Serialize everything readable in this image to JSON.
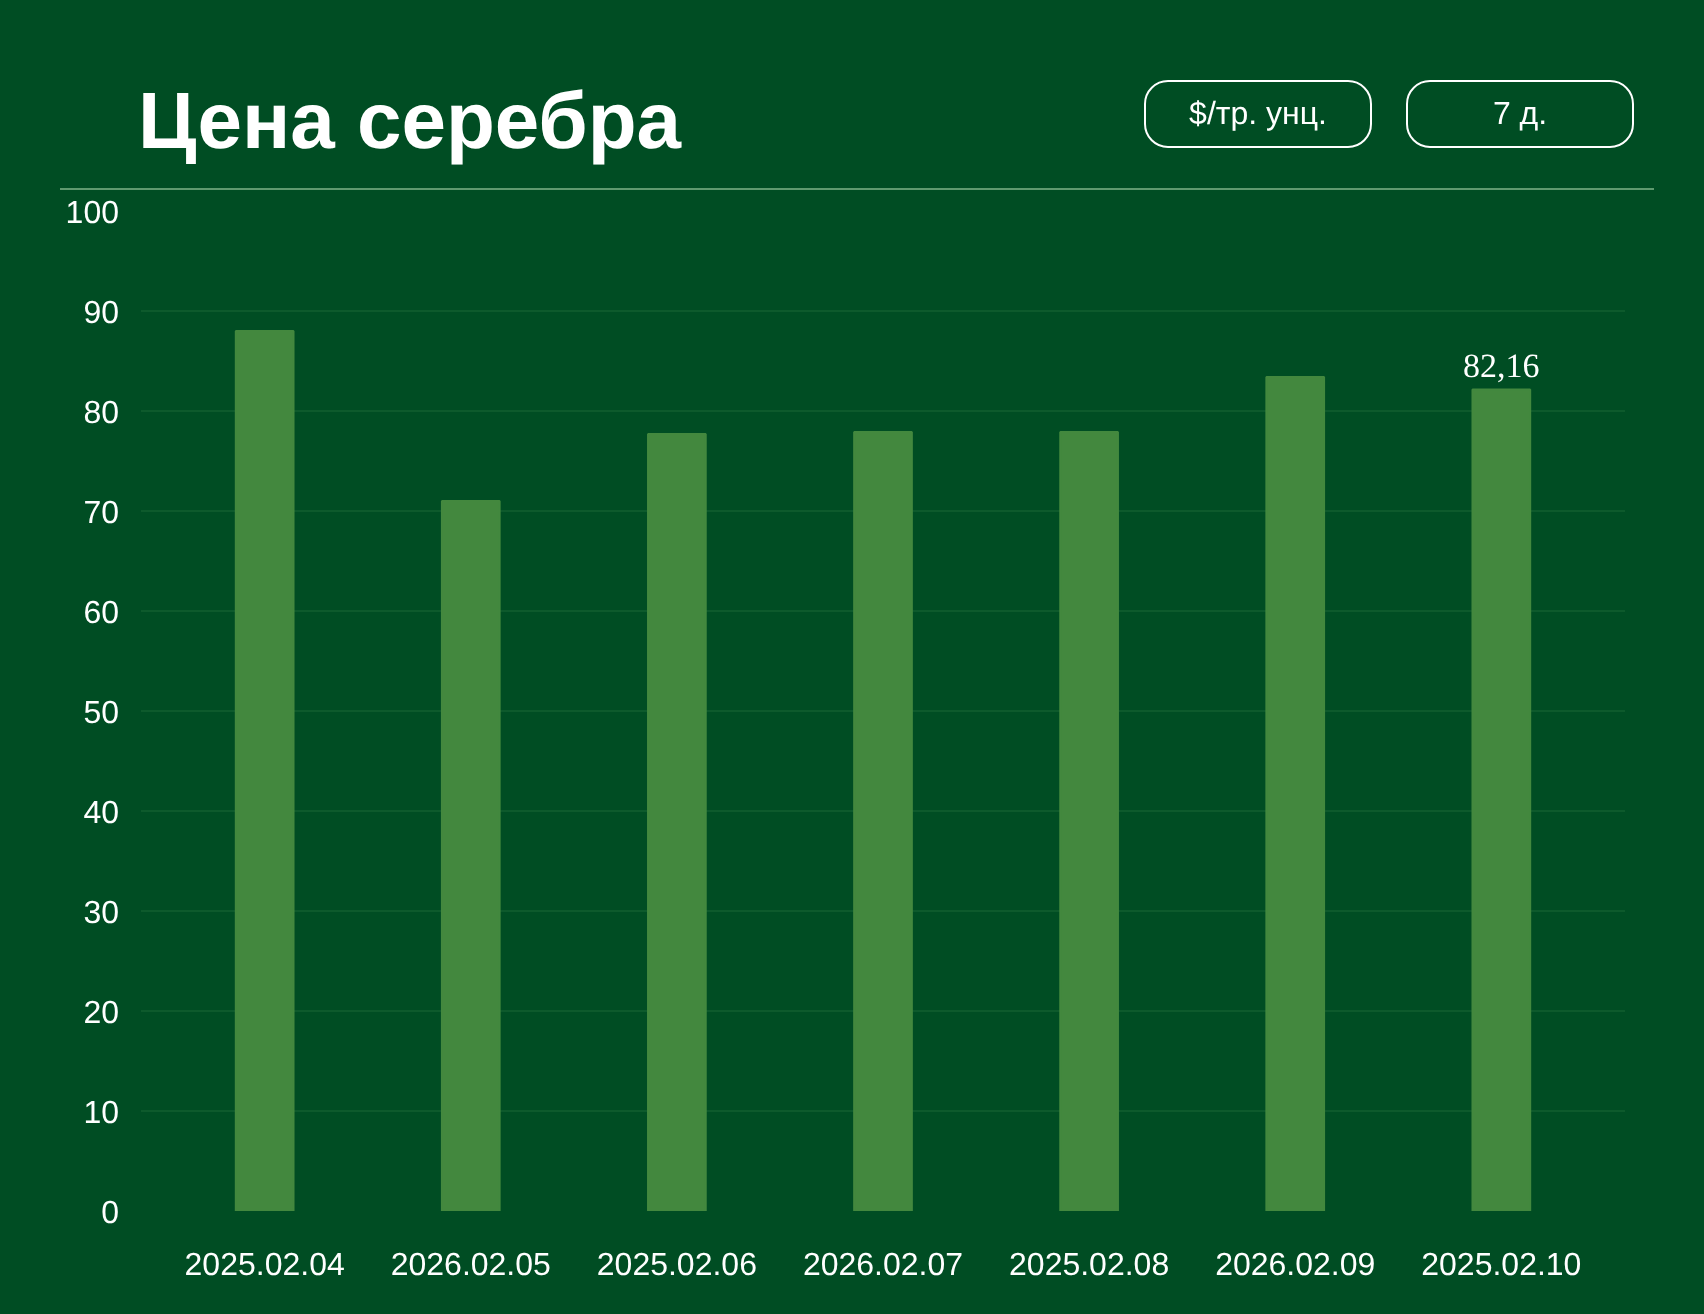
{
  "chart_data": {
    "type": "bar",
    "title": "Цена серебра",
    "annotations": [
      "$/тр. унц.",
      "7 д."
    ],
    "categories": [
      "2025.02.04",
      "2026.02.05",
      "2025.02.06",
      "2026.02.07",
      "2025.02.08",
      "2026.02.09",
      "2025.02.10"
    ],
    "values": [
      88,
      71,
      77.7,
      77.9,
      77.9,
      83.4,
      82.16
    ],
    "value_labels": [
      null,
      null,
      null,
      null,
      null,
      null,
      "82,16"
    ],
    "color": "#43883e",
    "ylim": [
      0,
      100
    ],
    "yticks": [
      0,
      10,
      20,
      30,
      40,
      50,
      60,
      70,
      80,
      90,
      100
    ],
    "grid": "y"
  }
}
